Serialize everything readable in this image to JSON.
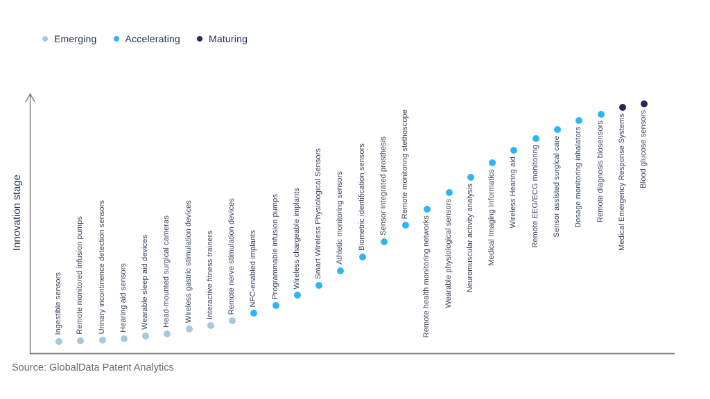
{
  "page": {
    "background": "#ffffff"
  },
  "chart_data": {
    "type": "scatter",
    "title": "",
    "xlabel": "",
    "ylabel": "Innovation stage",
    "source": "Source: GlobalData Patent Analytics",
    "axes": {
      "y_min": 0,
      "y_max": 1,
      "ticks_visible": false,
      "grid": false,
      "y_arrow": true
    },
    "legend": {
      "position": "top-left",
      "items": [
        {
          "label": "Emerging",
          "color": "#a5c9de"
        },
        {
          "label": "Accelerating",
          "color": "#2fb5f2"
        },
        {
          "label": "Maturing",
          "color": "#2e2557"
        }
      ]
    },
    "points": [
      {
        "label": "Ingestible sensors",
        "stage": "Emerging",
        "score": 0.047
      },
      {
        "label": "Remote monitored infusion pumps",
        "stage": "Emerging",
        "score": 0.049
      },
      {
        "label": "Urinary incontinence detection sensors",
        "stage": "Emerging",
        "score": 0.052
      },
      {
        "label": "Hearing aid sensors",
        "stage": "Emerging",
        "score": 0.057
      },
      {
        "label": "Wearable sleep aid devices",
        "stage": "Emerging",
        "score": 0.068
      },
      {
        "label": "Head-mounted surgical cameras",
        "stage": "Emerging",
        "score": 0.076
      },
      {
        "label": "Wireless gastric stimulation devices",
        "stage": "Emerging",
        "score": 0.095
      },
      {
        "label": "Interactive fitness trainers",
        "stage": "Emerging",
        "score": 0.108
      },
      {
        "label": "Remote nerve stimulation devices",
        "stage": "Emerging",
        "score": 0.127
      },
      {
        "label": "NFC-enabled implants",
        "stage": "Accelerating",
        "score": 0.156
      },
      {
        "label": "Programmable infusion pumps",
        "stage": "Accelerating",
        "score": 0.185
      },
      {
        "label": "Wireless chargeable implants",
        "stage": "Accelerating",
        "score": 0.225
      },
      {
        "label": "Smart Wireless Physiological Sensors",
        "stage": "Accelerating",
        "score": 0.263
      },
      {
        "label": "Athletic monitoring sensors",
        "stage": "Accelerating",
        "score": 0.319
      },
      {
        "label": "Biometric identification sensors",
        "stage": "Accelerating",
        "score": 0.372
      },
      {
        "label": "Sensor integrated prosthesis",
        "stage": "Accelerating",
        "score": 0.431
      },
      {
        "label": "Remote monitoring stethoscope",
        "stage": "Accelerating",
        "score": 0.495
      },
      {
        "label": "Remote health monitoring networks",
        "stage": "Accelerating",
        "score": 0.556
      },
      {
        "label": "Wearable physiological sensors",
        "stage": "Accelerating",
        "score": 0.62
      },
      {
        "label": "Neuromuscular activity analysis",
        "stage": "Accelerating",
        "score": 0.679
      },
      {
        "label": "Medical Imaging Informatics",
        "stage": "Accelerating",
        "score": 0.735
      },
      {
        "label": "Wireless Hearing aid",
        "stage": "Accelerating",
        "score": 0.783
      },
      {
        "label": "Remote EEG/ECG monitoring",
        "stage": "Accelerating",
        "score": 0.828
      },
      {
        "label": "Sensor assisted surgical care",
        "stage": "Accelerating",
        "score": 0.863
      },
      {
        "label": "Dosage monitoring inhalators",
        "stage": "Accelerating",
        "score": 0.897
      },
      {
        "label": "Remote diagnosis biosensors",
        "stage": "Accelerating",
        "score": 0.921
      },
      {
        "label": "Medical Emergency Response Systems",
        "stage": "Maturing",
        "score": 0.948
      },
      {
        "label": "Blood glucose sensors",
        "stage": "Maturing",
        "score": 0.961
      }
    ]
  }
}
